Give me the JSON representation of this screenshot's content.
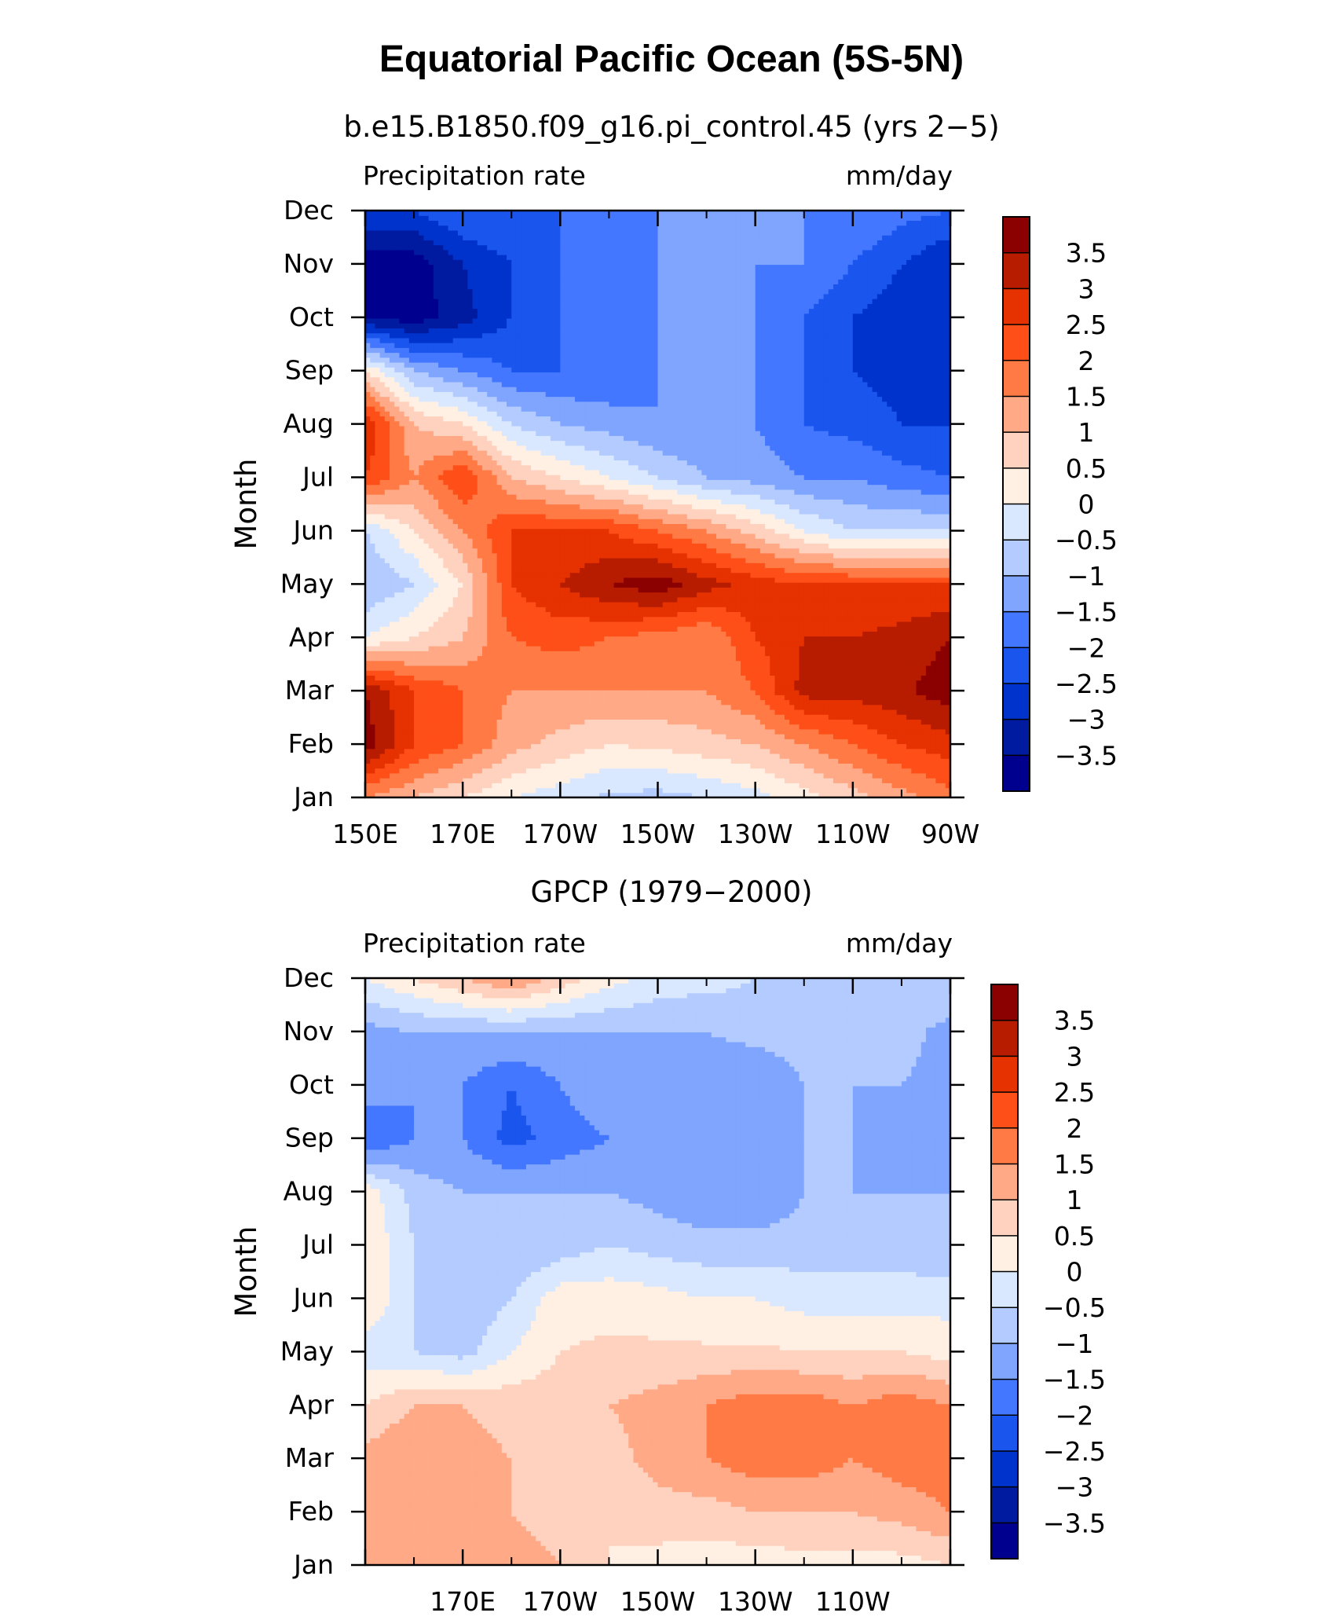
{
  "title": "Equatorial Pacific Ocean (5S-5N)",
  "chart_data": [
    {
      "type": "heatmap",
      "title": "b.e15.B1850.f09_g16.pi_control.45 (yrs 2−5)",
      "left_label": "Precipitation rate",
      "right_label": "mm/day",
      "ylabel": "Month",
      "xlabel": "",
      "y_ticks": [
        "Jan",
        "Feb",
        "Mar",
        "Apr",
        "May",
        "Jun",
        "Jul",
        "Aug",
        "Sep",
        "Oct",
        "Nov",
        "Dec"
      ],
      "x_ticks": [
        "150E",
        "170E",
        "170W",
        "150W",
        "130W",
        "110W",
        "90W"
      ],
      "xlim": [
        150,
        270
      ],
      "x": [
        150,
        160,
        170,
        180,
        190,
        200,
        210,
        220,
        230,
        240,
        250,
        260,
        270
      ],
      "z": [
        [
          1.5,
          1.0,
          0.5,
          0.0,
          -0.3,
          -0.6,
          -0.7,
          -0.5,
          -0.2,
          0.3,
          0.8,
          1.3,
          1.8
        ],
        [
          3.8,
          2.5,
          2.0,
          1.2,
          0.8,
          0.5,
          0.6,
          0.8,
          1.0,
          1.5,
          2.0,
          2.5,
          2.8
        ],
        [
          3.5,
          2.5,
          2.0,
          1.5,
          1.5,
          1.5,
          1.5,
          1.5,
          2.0,
          3.2,
          3.2,
          3.4,
          3.8
        ],
        [
          0.0,
          0.5,
          1.0,
          2.0,
          2.2,
          2.0,
          1.8,
          1.5,
          2.5,
          3.0,
          3.0,
          3.2,
          3.5
        ],
        [
          -1.0,
          -0.5,
          0.5,
          2.5,
          3.0,
          3.5,
          3.8,
          3.2,
          2.8,
          2.5,
          2.5,
          2.5,
          2.5
        ],
        [
          -0.5,
          0.5,
          1.5,
          2.5,
          2.5,
          2.5,
          2.0,
          1.5,
          0.8,
          0.0,
          -0.5,
          -0.5,
          -0.5
        ],
        [
          2.5,
          1.5,
          2.5,
          1.0,
          0.5,
          0.0,
          -0.5,
          -1.0,
          -1.2,
          -1.5,
          -1.5,
          -1.8,
          -2.0
        ],
        [
          3.0,
          1.0,
          0.5,
          -0.5,
          -1.0,
          -1.2,
          -1.5,
          -1.5,
          -1.5,
          -2.0,
          -2.2,
          -2.5,
          -2.5
        ],
        [
          0.5,
          -1.0,
          -1.5,
          -2.0,
          -2.0,
          -2.0,
          -1.5,
          -1.5,
          -1.5,
          -2.0,
          -2.5,
          -2.7,
          -2.5
        ],
        [
          -3.5,
          -3.8,
          -3.2,
          -2.5,
          -2.0,
          -2.0,
          -1.5,
          -1.5,
          -1.5,
          -2.0,
          -2.5,
          -2.8,
          -3.0
        ],
        [
          -3.8,
          -3.8,
          -3.0,
          -2.5,
          -2.0,
          -2.0,
          -1.5,
          -1.5,
          -1.5,
          -1.5,
          -2.0,
          -2.5,
          -3.0
        ],
        [
          -2.5,
          -2.5,
          -2.0,
          -2.0,
          -2.0,
          -1.8,
          -1.5,
          -1.5,
          -1.5,
          -1.5,
          -1.5,
          -1.8,
          -2.0
        ]
      ]
    },
    {
      "type": "heatmap",
      "title": "GPCP (1979−2000)",
      "left_label": "Precipitation rate",
      "right_label": "mm/day",
      "ylabel": "Month",
      "xlabel": "",
      "y_ticks": [
        "Jan",
        "Feb",
        "Mar",
        "Apr",
        "May",
        "Jun",
        "Jul",
        "Aug",
        "Sep",
        "Oct",
        "Nov",
        "Dec"
      ],
      "x_ticks": [
        "170E",
        "170W",
        "150W",
        "130W",
        "110W"
      ],
      "xlim": [
        150,
        270
      ],
      "x": [
        150,
        160,
        170,
        180,
        190,
        200,
        210,
        220,
        230,
        240,
        250,
        260,
        270
      ],
      "z": [
        [
          1.0,
          1.0,
          1.2,
          1.5,
          1.0,
          0.5,
          0.3,
          0.2,
          0.2,
          0.3,
          0.3,
          0.3,
          0.5
        ],
        [
          1.0,
          1.5,
          1.2,
          1.0,
          0.5,
          0.5,
          0.8,
          0.8,
          1.0,
          1.0,
          1.0,
          1.2,
          1.5
        ],
        [
          1.2,
          1.5,
          1.2,
          1.0,
          0.5,
          0.8,
          1.2,
          1.5,
          1.8,
          1.8,
          1.5,
          1.8,
          1.8
        ],
        [
          0.5,
          1.0,
          1.0,
          0.8,
          0.8,
          1.0,
          1.2,
          1.5,
          1.8,
          1.8,
          1.5,
          1.8,
          1.5
        ],
        [
          -0.3,
          -0.5,
          -0.7,
          0.0,
          0.5,
          0.6,
          0.6,
          0.6,
          0.6,
          0.5,
          0.5,
          0.5,
          0.3
        ],
        [
          0.5,
          -0.5,
          -1.0,
          -0.5,
          0.3,
          0.3,
          0.2,
          0.0,
          0.0,
          -0.2,
          -0.2,
          -0.2,
          -0.2
        ],
        [
          0.5,
          -0.5,
          -1.0,
          -1.0,
          -0.8,
          -0.5,
          -0.7,
          -0.8,
          -0.8,
          -0.8,
          -0.8,
          -0.8,
          -1.0
        ],
        [
          0.3,
          -0.7,
          -1.0,
          -1.0,
          -1.0,
          -1.0,
          -1.2,
          -1.5,
          -1.5,
          -1.0,
          -1.0,
          -1.0,
          -1.0
        ],
        [
          -2.0,
          -1.5,
          -1.5,
          -2.2,
          -1.8,
          -1.5,
          -1.5,
          -1.5,
          -1.5,
          -1.0,
          -1.0,
          -1.2,
          -1.2
        ],
        [
          -1.2,
          -1.5,
          -1.5,
          -2.0,
          -1.5,
          -1.0,
          -1.2,
          -1.5,
          -1.5,
          -1.0,
          -1.0,
          -1.0,
          -1.2
        ],
        [
          -1.2,
          -1.0,
          -1.0,
          -1.0,
          -1.0,
          -1.0,
          -1.0,
          -1.0,
          -0.8,
          -0.8,
          -0.8,
          -0.8,
          -1.2
        ],
        [
          0.0,
          0.5,
          1.0,
          1.5,
          0.8,
          0.2,
          -0.2,
          -0.3,
          -0.5,
          -0.5,
          -0.5,
          -0.5,
          -0.5
        ]
      ]
    }
  ],
  "colorbar": {
    "levels": [
      -3.5,
      -3,
      -2.5,
      -2,
      -1.5,
      -1,
      -0.5,
      0,
      0.5,
      1,
      1.5,
      2,
      2.5,
      3,
      3.5
    ],
    "labels": [
      "3.5",
      "3",
      "2.5",
      "2",
      "1.5",
      "1",
      "0.5",
      "0",
      "−0.5",
      "−1",
      "−1.5",
      "−2",
      "−2.5",
      "−3",
      "−3.5"
    ],
    "colors": [
      "#00008f",
      "#001aa0",
      "#0033cc",
      "#1a55ee",
      "#4477ff",
      "#7fa5ff",
      "#b3cbff",
      "#d9e8ff",
      "#fff0e3",
      "#ffd2bf",
      "#ffa987",
      "#ff7a45",
      "#ff4f18",
      "#e63100",
      "#b71c00",
      "#8b0000"
    ]
  }
}
